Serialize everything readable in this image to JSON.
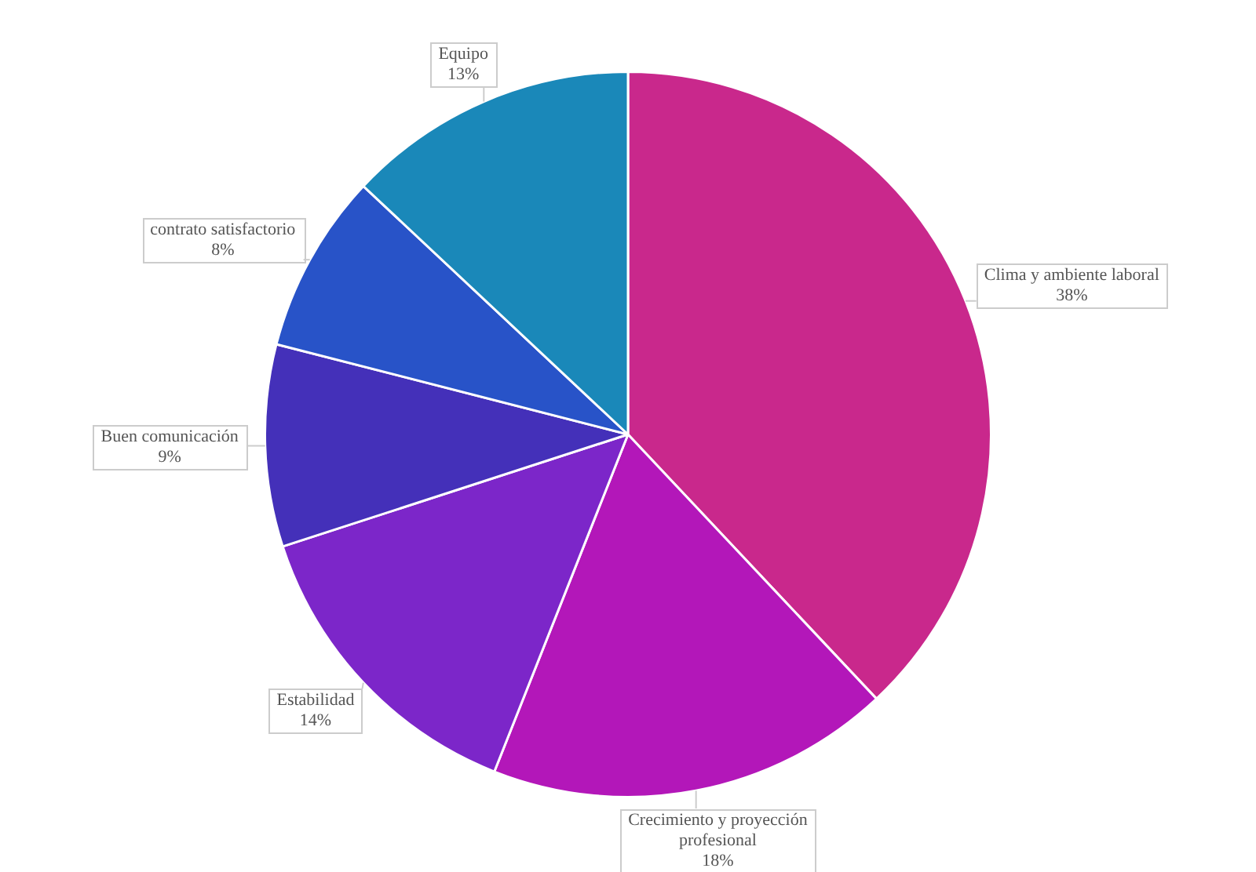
{
  "chart_data": {
    "type": "pie",
    "categories": [
      "Clima y ambiente laboral",
      "Crecimiento y proyección profesional",
      "Estabilidad",
      "Buen comunicación",
      "contrato satisfactorio",
      "Equipo"
    ],
    "values": [
      38,
      18,
      14,
      9,
      8,
      13
    ],
    "value_labels": [
      "38%",
      "18%",
      "14%",
      "9%",
      "8%",
      "13%"
    ],
    "colors": [
      "#c9288c",
      "#b317b9",
      "#7c26c9",
      "#4430b9",
      "#2853c8",
      "#1a88b9"
    ]
  }
}
